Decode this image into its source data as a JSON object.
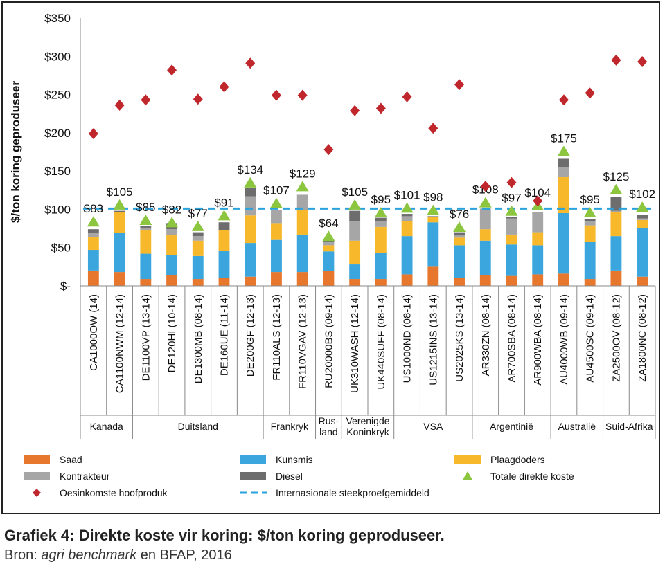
{
  "caption": {
    "title": "Grafiek 4: Direkte koste vir koring: $/ton koring geproduseer.",
    "source_prefix": "Bron: ",
    "source_italic": "agri benchmark",
    "source_suffix": " en BFAP, 2016"
  },
  "colors": {
    "saad": "#e8772e",
    "kunsmis": "#3aa6dd",
    "plaagdoders": "#f7b82b",
    "kontrakteur": "#a6a6a6",
    "diesel": "#6d6d6d",
    "total_marker": "#8cc63f",
    "revenue_marker": "#c0272d",
    "average_line": "#2aa2dd"
  },
  "chart_data": {
    "type": "bar",
    "stacked": true,
    "ylabel": "$/ton koring geproduseer",
    "ylim": [
      0,
      350
    ],
    "yticks": [
      0,
      50,
      100,
      150,
      200,
      250,
      300,
      350
    ],
    "ytick_labels": [
      "$-",
      "$50",
      "$100",
      "$150",
      "$200",
      "$250",
      "$300",
      "$350"
    ],
    "grid": false,
    "categories": [
      "CA1000OW (14)",
      "CA1100NWM (12-14)",
      "DE1100VP (13-14)",
      "DE120HI (10-14)",
      "DE1300MB (08-14)",
      "DE160UE (11-14)",
      "DE200GF (12-13)",
      "FR110ALS (12-13)",
      "FR110VGAV (12-13)",
      "RU20000BS (09-14)",
      "UK310WASH (12-14)",
      "UK440SUFF (08-14)",
      "US1000ND (08-14)",
      "US1215INS (13-14)",
      "US2025KS (13-14)",
      "AR330ZN (08-14)",
      "AR700SBA (08-14)",
      "AR900WBA (08-14)",
      "AU4000WB (09-14)",
      "AU4500SC (09-14)",
      "ZA2500OV (08-12)",
      "ZA1800NC (08-12)"
    ],
    "groups": [
      {
        "lines": [
          "Kanada"
        ],
        "start": 0,
        "end": 1
      },
      {
        "lines": [
          "Duitsland"
        ],
        "start": 2,
        "end": 6
      },
      {
        "lines": [
          "Frankryk"
        ],
        "start": 7,
        "end": 8
      },
      {
        "lines": [
          "Rus-",
          "land"
        ],
        "start": 9,
        "end": 9
      },
      {
        "lines": [
          "Verenigde",
          "Koninkryk"
        ],
        "start": 10,
        "end": 11
      },
      {
        "lines": [
          "VSA"
        ],
        "start": 12,
        "end": 14
      },
      {
        "lines": [
          "Argentinië"
        ],
        "start": 15,
        "end": 17
      },
      {
        "lines": [
          "Australië"
        ],
        "start": 18,
        "end": 19
      },
      {
        "lines": [
          "Suid-Afrika"
        ],
        "start": 20,
        "end": 21
      }
    ],
    "series": [
      {
        "name": "Saad",
        "color_key": "saad",
        "values": [
          20,
          18,
          9,
          14,
          9,
          10,
          12,
          18,
          18,
          19,
          9,
          9,
          15,
          25,
          10,
          14,
          13,
          15,
          16,
          9,
          20,
          12
        ]
      },
      {
        "name": "Kunsmis",
        "color_key": "kunsmis",
        "values": [
          27,
          51,
          33,
          26,
          30,
          36,
          44,
          42,
          49,
          26,
          19,
          34,
          50,
          58,
          43,
          45,
          41,
          38,
          79,
          48,
          45,
          64
        ]
      },
      {
        "name": "Plaagdoders",
        "color_key": "plaagdoders",
        "values": [
          17,
          27,
          31,
          26,
          20,
          27,
          36,
          22,
          32,
          8,
          31,
          34,
          20,
          7,
          10,
          15,
          13,
          17,
          47,
          22,
          31,
          10
        ]
      },
      {
        "name": "Kontrakteur",
        "color_key": "kontrakteur",
        "values": [
          5,
          0,
          3,
          8,
          6,
          0,
          25,
          17,
          20,
          4,
          25,
          8,
          6,
          0,
          3,
          27,
          21,
          26,
          13,
          6,
          2,
          2
        ]
      },
      {
        "name": "Diesel",
        "color_key": "diesel",
        "values": [
          5,
          2,
          2,
          8,
          5,
          10,
          11,
          0,
          0,
          3,
          14,
          4,
          3,
          1,
          4,
          0,
          2,
          0,
          11,
          2,
          18,
          5
        ]
      }
    ],
    "totals": {
      "name": "Totale direkte koste",
      "values": [
        83,
        105,
        85,
        82,
        77,
        91,
        134,
        107,
        129,
        64,
        105,
        95,
        101,
        98,
        76,
        108,
        97,
        104,
        175,
        95,
        125,
        102
      ],
      "labels": [
        "$83",
        "$105",
        "$85",
        "$82",
        "$77",
        "$91",
        "$134",
        "$107",
        "$129",
        "$64",
        "$105",
        "$95",
        "$101",
        "$98",
        "$76",
        "$108",
        "$97",
        "$104",
        "$175",
        "$95",
        "$125",
        "$102"
      ]
    },
    "revenue": {
      "name": "Oesinkomste hoofproduk",
      "values": [
        199,
        236,
        243,
        282,
        244,
        260,
        291,
        249,
        249,
        178,
        229,
        232,
        247,
        206,
        263,
        130,
        135,
        111,
        243,
        252,
        295,
        293
      ]
    },
    "average": {
      "name": "Internasionale steekproefgemiddeld",
      "value": 101
    },
    "legend": [
      {
        "label": "Saad",
        "kind": "swatch",
        "color_key": "saad"
      },
      {
        "label": "Kunsmis",
        "kind": "swatch",
        "color_key": "kunsmis"
      },
      {
        "label": "Plaagdoders",
        "kind": "swatch",
        "color_key": "plaagdoders"
      },
      {
        "label": "Kontrakteur",
        "kind": "swatch",
        "color_key": "kontrakteur"
      },
      {
        "label": "Diesel",
        "kind": "swatch",
        "color_key": "diesel"
      },
      {
        "label": "Totale direkte koste",
        "kind": "triangle",
        "color_key": "total_marker"
      },
      {
        "label": "Oesinkomste hoofproduk",
        "kind": "diamond",
        "color_key": "revenue_marker"
      },
      {
        "label": "Internasionale steekproefgemiddeld",
        "kind": "dash",
        "color_key": "average_line"
      }
    ],
    "legend_placement": "bottom"
  }
}
